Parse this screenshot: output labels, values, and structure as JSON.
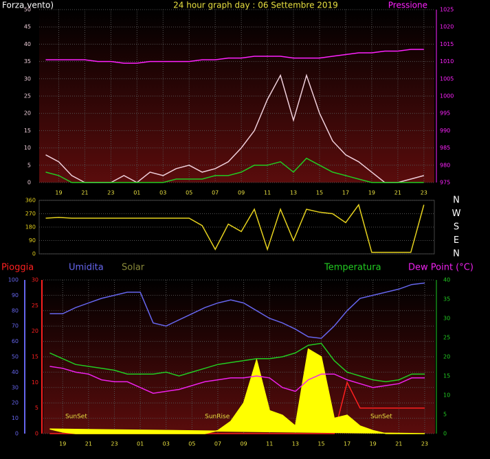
{
  "chart_data": [
    {
      "type": "line",
      "title": "24 hour graph day : 06 Settembre 2019",
      "ylabel": "Forza vento)",
      "y2label": "Pressione",
      "x": [
        18,
        19,
        20,
        21,
        22,
        23,
        24,
        25,
        26,
        27,
        28,
        29,
        30,
        31,
        32,
        33,
        34,
        35,
        36,
        37,
        38,
        39,
        40,
        41,
        42,
        43,
        44,
        45,
        46,
        47
      ],
      "xlim": [
        17.5,
        47.8
      ],
      "xticks": [
        19,
        21,
        23,
        {
          "value": 25,
          "label": "01"
        },
        {
          "value": 27,
          "label": "03"
        },
        {
          "value": 29,
          "label": "05"
        },
        {
          "value": 31,
          "label": "07"
        },
        {
          "value": 33,
          "label": "09"
        },
        {
          "value": 35,
          "label": "11"
        },
        {
          "value": 37,
          "label": "13"
        },
        {
          "value": 39,
          "label": "15"
        },
        {
          "value": 41,
          "label": "17"
        },
        {
          "value": 43,
          "label": "19"
        },
        {
          "value": 45,
          "label": "21"
        },
        {
          "value": 47,
          "label": "23"
        }
      ],
      "ylim": [
        0,
        50
      ],
      "yticks": [
        0,
        5,
        10,
        15,
        20,
        25,
        30,
        35,
        40,
        45,
        50
      ],
      "y2lim": [
        975,
        1025
      ],
      "y2ticks": [
        975,
        980,
        985,
        990,
        995,
        1000,
        1005,
        1010,
        1015,
        1020,
        1025
      ],
      "grid": true,
      "series": [
        {
          "color": "#f0d0dc",
          "values": [
            8,
            6,
            2,
            0,
            0,
            0,
            2,
            0,
            3,
            2,
            4,
            5,
            3,
            4,
            6,
            10,
            15,
            24,
            31,
            18,
            31,
            20,
            12,
            8,
            6,
            3,
            0,
            0,
            1,
            2
          ]
        },
        {
          "color": "#22cc22",
          "values": [
            3,
            2,
            0,
            0,
            0,
            0,
            0,
            0,
            0,
            0,
            1,
            1,
            1,
            2,
            2,
            3,
            5,
            5,
            6,
            3,
            7,
            5,
            3,
            2,
            1,
            0,
            0,
            0,
            0,
            0
          ]
        },
        {
          "color": "#ff22ff",
          "axis": "y2",
          "values": [
            1010.5,
            1010.5,
            1010.5,
            1010.5,
            1010,
            1010,
            1009.5,
            1009.5,
            1010,
            1010,
            1010,
            1010,
            1010.5,
            1010.5,
            1011,
            1011,
            1011.5,
            1011.5,
            1011.5,
            1011,
            1011,
            1011,
            1011.5,
            1012,
            1012.5,
            1012.5,
            1013,
            1013,
            1013.5,
            1013.5
          ]
        }
      ]
    },
    {
      "type": "line",
      "x": [
        18,
        19,
        20,
        21,
        22,
        23,
        24,
        25,
        26,
        27,
        28,
        29,
        30,
        31,
        32,
        33,
        34,
        35,
        36,
        37,
        38,
        39,
        40,
        41,
        42,
        43,
        44,
        45,
        46,
        47
      ],
      "xlim": [
        17.5,
        47.8
      ],
      "ylim": [
        0,
        360
      ],
      "yticks": [
        0,
        90,
        180,
        270,
        360
      ],
      "y2lim": [
        0,
        360
      ],
      "y2ticks": [
        {
          "value": 360,
          "label": "N"
        },
        {
          "value": 270,
          "label": "W"
        },
        {
          "value": 180,
          "label": "S"
        },
        {
          "value": 90,
          "label": "E"
        },
        {
          "value": 0,
          "label": "N"
        }
      ],
      "grid": true,
      "series": [
        {
          "color": "#e6d21e",
          "values": [
            240,
            245,
            240,
            240,
            240,
            240,
            240,
            240,
            240,
            240,
            240,
            240,
            190,
            30,
            200,
            150,
            300,
            30,
            300,
            90,
            300,
            280,
            270,
            210,
            330,
            10,
            10,
            10,
            10,
            330
          ]
        }
      ]
    },
    {
      "type": "line",
      "x": [
        18,
        19,
        20,
        21,
        22,
        23,
        24,
        25,
        26,
        27,
        28,
        29,
        30,
        31,
        32,
        33,
        34,
        35,
        36,
        37,
        38,
        39,
        40,
        41,
        42,
        43,
        44,
        45,
        46,
        47
      ],
      "xlim": [
        17.5,
        47.8
      ],
      "xticks": [
        19,
        21,
        23,
        {
          "value": 25,
          "label": "01"
        },
        {
          "value": 27,
          "label": "03"
        },
        {
          "value": 29,
          "label": "05"
        },
        {
          "value": 31,
          "label": "07"
        },
        {
          "value": 33,
          "label": "09"
        },
        {
          "value": 35,
          "label": "11"
        },
        {
          "value": 37,
          "label": "13"
        },
        {
          "value": 39,
          "label": "15"
        },
        {
          "value": 41,
          "label": "17"
        },
        {
          "value": 43,
          "label": "19"
        },
        {
          "value": 45,
          "label": "21"
        },
        {
          "value": 47,
          "label": "23"
        }
      ],
      "ylim": [
        0,
        100
      ],
      "yticks": [
        0,
        10,
        20,
        30,
        40,
        50,
        60,
        70,
        80,
        90,
        100
      ],
      "y2lim": [
        0,
        40
      ],
      "y2ticks": [
        0,
        5,
        10,
        15,
        20,
        25,
        30,
        35,
        40
      ],
      "y3lim": [
        0,
        30
      ],
      "y3ticks": [
        0,
        5,
        10,
        15,
        20,
        25,
        30
      ],
      "grid": true,
      "annotations": [
        {
          "text": "SunSet",
          "x": 19.2
        },
        {
          "text": "SunRise",
          "x": 30
        },
        {
          "text": "SunSet",
          "x": 42.8
        }
      ],
      "series": [
        {
          "name": "Pioggia",
          "color": "#ff2020",
          "axis": "y3",
          "values": [
            0,
            0,
            0,
            0,
            0,
            0,
            0,
            0,
            0,
            0,
            0,
            0,
            0,
            0,
            0,
            0,
            0,
            0,
            0,
            0,
            0,
            0,
            0,
            10,
            5,
            5,
            5,
            5,
            5,
            5
          ]
        },
        {
          "name": "Umidita",
          "color": "#6666ee",
          "values": [
            78,
            78,
            82,
            85,
            88,
            90,
            92,
            92,
            72,
            70,
            74,
            78,
            82,
            85,
            87,
            85,
            80,
            75,
            72,
            68,
            63,
            62,
            70,
            80,
            88,
            90,
            92,
            94,
            97,
            98
          ]
        },
        {
          "name": "Solar",
          "color": "#8a8a3a",
          "fill": "#ffff00",
          "area": true,
          "values": [
            3,
            1,
            0,
            0,
            0,
            0,
            0,
            0,
            0,
            0,
            0,
            0,
            0,
            2,
            8,
            20,
            48,
            15,
            12,
            5,
            55,
            50,
            10,
            12,
            5,
            2,
            0,
            0,
            0,
            0
          ]
        },
        {
          "name": "Temperatura",
          "color": "#22cc22",
          "axis": "y2",
          "values": [
            21,
            19.5,
            18,
            17.5,
            17,
            16.5,
            15.5,
            15.5,
            15.5,
            16,
            15,
            16,
            17,
            18,
            18.5,
            19,
            19.5,
            19.5,
            20,
            21,
            23,
            23.5,
            19,
            16,
            15,
            14,
            13.5,
            14,
            15.5,
            15.5
          ]
        },
        {
          "name": "Dew Point (°C)",
          "color": "#ee22ee",
          "axis": "y2",
          "values": [
            17.5,
            17,
            16,
            15.5,
            14,
            13.5,
            13.5,
            12,
            10.5,
            11,
            11.5,
            12.5,
            13.5,
            14,
            14.5,
            14.5,
            15,
            14.5,
            12,
            11,
            14,
            15.5,
            15.5,
            14,
            13,
            12,
            12.5,
            13,
            14.5,
            14.5
          ]
        }
      ]
    }
  ]
}
